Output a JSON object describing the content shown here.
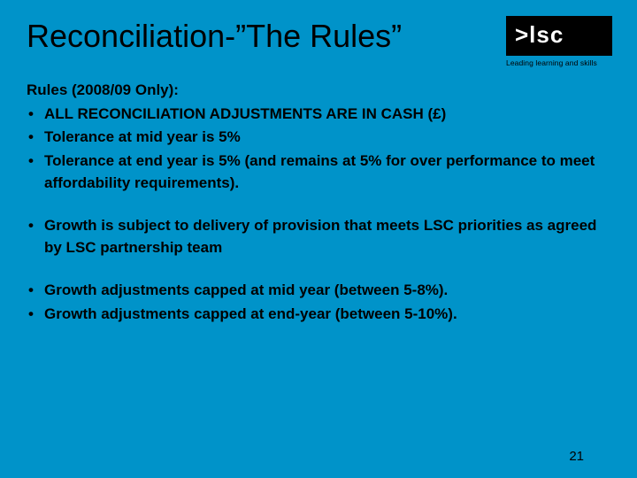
{
  "title": "Reconciliation-”The Rules”",
  "logo": {
    "text": ">lsc",
    "tagline": "Leading learning and skills"
  },
  "section_heading": "Rules (2008/09 Only):",
  "group1": [
    "ALL RECONCILIATION ADJUSTMENTS ARE IN CASH (£)",
    "Tolerance at mid year is 5%",
    "Tolerance at end year is 5% (and remains at 5% for over performance to meet affordability requirements)."
  ],
  "group2": [
    "Growth is subject to delivery of provision that meets LSC priorities as agreed by LSC partnership team"
  ],
  "group3": [
    "Growth adjustments capped at mid year (between 5-8%).",
    "Growth adjustments capped at end-year (between 5-10%)."
  ],
  "page_number": "21",
  "colors": {
    "background": "#0093c9",
    "text": "#000000",
    "logo_bg": "#000000",
    "logo_fg": "#ffffff"
  }
}
